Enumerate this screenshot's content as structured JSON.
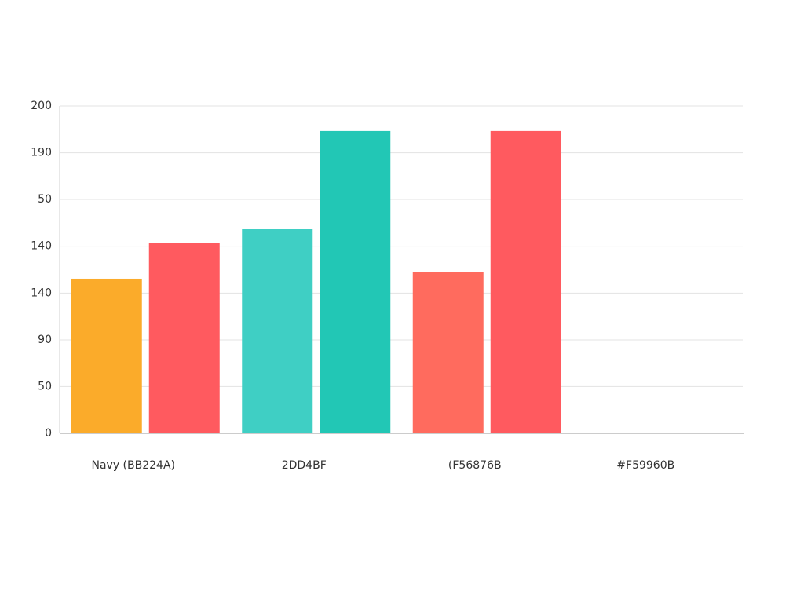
{
  "chart_data": {
    "type": "bar",
    "categories": [
      "Navy (BB224A)",
      "2DD4BF",
      "(F56876B",
      "#F59960B"
    ],
    "series": [
      {
        "colors": [
          "#fbab2a",
          "#3fcfc4",
          "#ff6b5e",
          "#ff6b5e"
        ],
        "values": [
          94.5,
          124.7,
          98.8,
          null
        ]
      },
      {
        "colors": [
          "#ff5a5f",
          "#22c7b5",
          "#ff5a5f",
          "#ff5a5f"
        ],
        "values": [
          116.5,
          184.7,
          184.7,
          null
        ]
      }
    ],
    "ylim": [
      0,
      200
    ],
    "yticks": [
      0,
      {
        "value": 28.6,
        "label": "50"
      },
      {
        "value": 57.1,
        "label": "90"
      },
      {
        "value": 85.7,
        "label": "140"
      },
      {
        "value": 114.3,
        "label": "140"
      },
      {
        "value": 142.9,
        "label": "50"
      },
      {
        "value": 171.4,
        "label": "190"
      },
      200
    ],
    "grid": true
  }
}
